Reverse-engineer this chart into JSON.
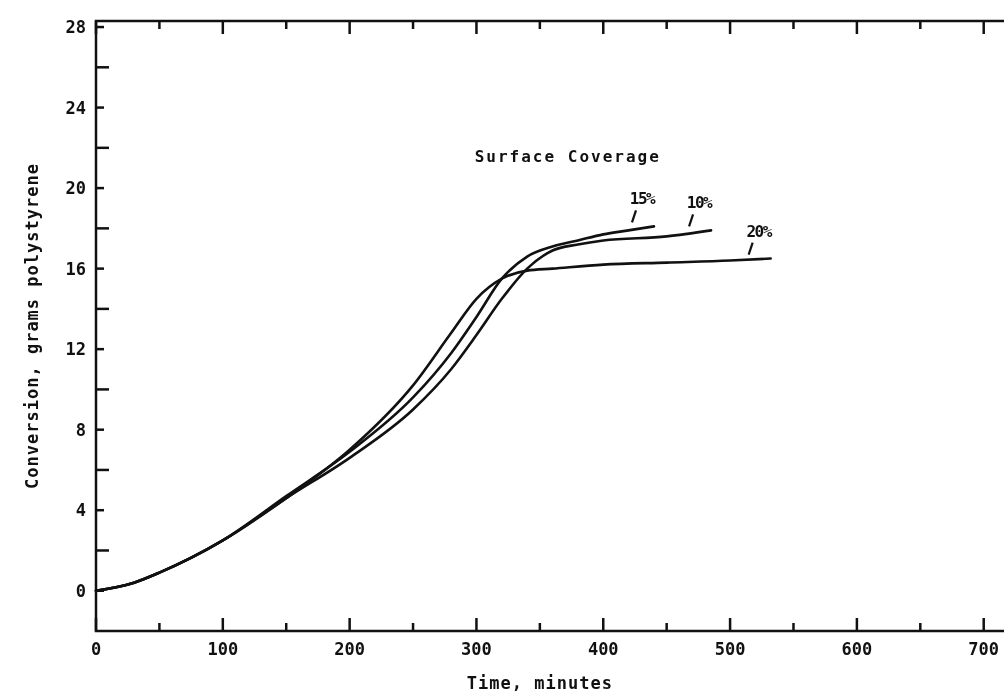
{
  "chart_data": {
    "type": "line",
    "xlabel": "Time,  minutes",
    "ylabel": "Conversion,  grams polystyrene",
    "annotations": [
      "Surface Coverage"
    ],
    "xlim": [
      0,
      716
    ],
    "ylim": [
      -2,
      28.3
    ],
    "xticks": [
      0,
      {
        "value": 50,
        "label": null
      },
      100,
      {
        "value": 150,
        "label": null
      },
      200,
      {
        "value": 250,
        "label": null
      },
      300,
      {
        "value": 350,
        "label": null
      },
      400,
      {
        "value": 450,
        "label": null
      },
      500,
      {
        "value": 550,
        "label": null
      },
      600,
      {
        "value": 650,
        "label": null
      },
      700
    ],
    "yticks": [
      0,
      {
        "value": 2,
        "label": null
      },
      4,
      {
        "value": 6,
        "label": null
      },
      8,
      {
        "value": 10,
        "label": null
      },
      12,
      {
        "value": 14,
        "label": null
      },
      16,
      {
        "value": 18,
        "label": null
      },
      20,
      {
        "value": 22,
        "label": null
      },
      24,
      {
        "value": 26,
        "label": null
      },
      28
    ],
    "grid": false,
    "marker": "none",
    "line_style": "solid",
    "series": [
      {
        "name": "15%",
        "color": "#111111",
        "x": [
          0,
          30,
          50,
          100,
          150,
          200,
          250,
          280,
          300,
          320,
          340,
          360,
          380,
          400,
          420,
          440
        ],
        "values": [
          0,
          0.4,
          0.9,
          2.5,
          4.7,
          6.9,
          9.6,
          11.8,
          13.6,
          15.5,
          16.6,
          17.1,
          17.4,
          17.7,
          17.9,
          18.1
        ]
      },
      {
        "name": "10%",
        "color": "#111111",
        "x": [
          0,
          30,
          50,
          100,
          150,
          200,
          250,
          280,
          300,
          320,
          340,
          360,
          380,
          400,
          450,
          485
        ],
        "values": [
          0,
          0.4,
          0.9,
          2.5,
          4.6,
          6.6,
          9.0,
          11.0,
          12.7,
          14.5,
          16.0,
          16.9,
          17.2,
          17.4,
          17.6,
          17.9
        ]
      },
      {
        "name": "20%",
        "color": "#111111",
        "x": [
          0,
          30,
          50,
          100,
          150,
          200,
          250,
          280,
          300,
          320,
          340,
          360,
          400,
          450,
          500,
          532
        ],
        "values": [
          0,
          0.4,
          0.9,
          2.5,
          4.6,
          7.0,
          10.2,
          12.8,
          14.5,
          15.5,
          15.9,
          16.0,
          16.2,
          16.3,
          16.4,
          16.5
        ]
      }
    ]
  }
}
